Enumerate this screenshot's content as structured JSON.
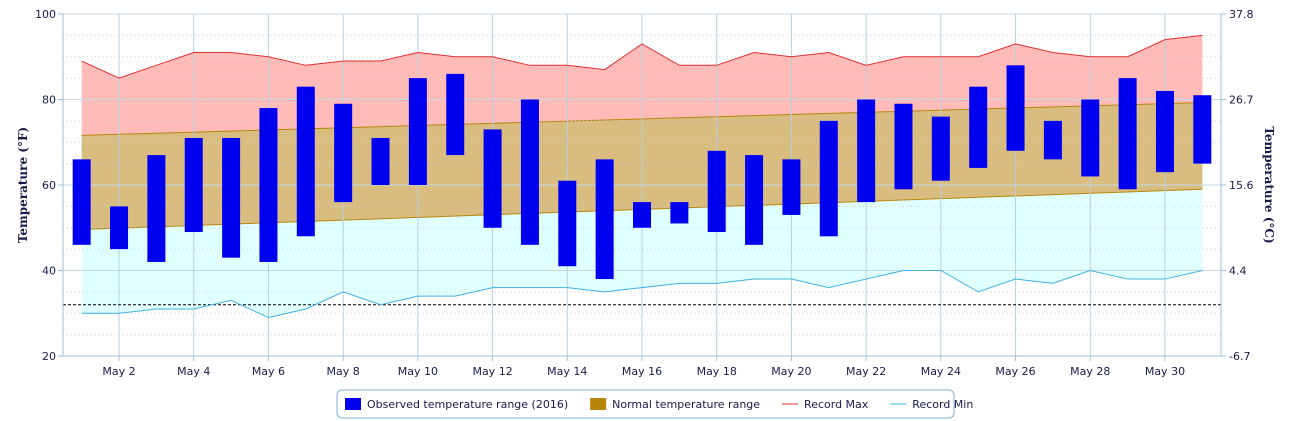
{
  "chart_data": {
    "type": "bar",
    "title": "",
    "x_tick_labels": [
      "May 2",
      "May 4",
      "May 6",
      "May 8",
      "May 10",
      "May 12",
      "May 14",
      "May 16",
      "May 18",
      "May 20",
      "May 22",
      "May 24",
      "May 26",
      "May 28",
      "May 30"
    ],
    "x_tick_days": [
      2,
      4,
      6,
      8,
      10,
      12,
      14,
      16,
      18,
      20,
      22,
      24,
      26,
      28,
      30
    ],
    "xlim": [
      0.5,
      31.5
    ],
    "y_left": {
      "label": "Temperature (°F)",
      "ylim": [
        20,
        100
      ],
      "ticks": [
        "20",
        "40",
        "60",
        "80",
        "100"
      ]
    },
    "y_right": {
      "label": "Temperature (°C)",
      "ylim": [
        -6.7,
        37.8
      ],
      "ticks": [
        "-6.7",
        "4.4",
        "15.6",
        "26.7",
        "37.8"
      ]
    },
    "reference_line": {
      "value": 32,
      "style": "dashed",
      "color": "#000000"
    },
    "grid": true,
    "legend_placement": "bottom-center",
    "series": [
      {
        "name": "Observed temperature range (2016)",
        "kind": "range-bar",
        "color": "#0000ee",
        "days": [
          1,
          2,
          3,
          4,
          5,
          6,
          7,
          8,
          9,
          10,
          11,
          12,
          13,
          14,
          15,
          16,
          17,
          18,
          19,
          20,
          21,
          22,
          23,
          24,
          25,
          26,
          27,
          28,
          29,
          30,
          31
        ],
        "low": [
          46,
          45,
          42,
          49,
          43,
          42,
          48,
          56,
          60,
          60,
          67,
          50,
          46,
          41,
          38,
          50,
          51,
          49,
          46,
          53,
          48,
          56,
          59,
          61,
          64,
          68,
          66,
          62,
          59,
          63,
          65
        ],
        "high": [
          66,
          55,
          67,
          71,
          71,
          78,
          83,
          79,
          71,
          85,
          86,
          73,
          80,
          61,
          66,
          56,
          56,
          68,
          67,
          66,
          75,
          80,
          79,
          76,
          83,
          88,
          75,
          80,
          85,
          82,
          81
        ]
      },
      {
        "name": "Normal temperature range",
        "kind": "area-range",
        "color": "#b8860b",
        "fill": "#d9bd80",
        "days": [
          1,
          31
        ],
        "low": [
          49.6,
          59.0
        ],
        "high": [
          71.6,
          79.3
        ]
      },
      {
        "name": "Record Max",
        "kind": "line",
        "color": "#e03030",
        "fill": "#ffbbb8",
        "days": [
          1,
          2,
          3,
          4,
          5,
          6,
          7,
          8,
          9,
          10,
          11,
          12,
          13,
          14,
          15,
          16,
          17,
          18,
          19,
          20,
          21,
          22,
          23,
          24,
          25,
          26,
          27,
          28,
          29,
          30,
          31
        ],
        "values": [
          89,
          85,
          88,
          91,
          91,
          90,
          88,
          89,
          89,
          91,
          90,
          90,
          88,
          88,
          87,
          93,
          88,
          88,
          91,
          90,
          91,
          88,
          90,
          90,
          90,
          93,
          91,
          90,
          90,
          94,
          95
        ]
      },
      {
        "name": "Record Min",
        "kind": "line",
        "color": "#40b0e0",
        "fill": "#e0ffff",
        "days": [
          1,
          2,
          3,
          4,
          5,
          6,
          7,
          8,
          9,
          10,
          11,
          12,
          13,
          14,
          15,
          16,
          17,
          18,
          19,
          20,
          21,
          22,
          23,
          24,
          25,
          26,
          27,
          28,
          29,
          30,
          31
        ],
        "values": [
          30,
          30,
          31,
          31,
          33,
          29,
          31,
          35,
          32,
          34,
          34,
          36,
          36,
          36,
          35,
          36,
          37,
          37,
          38,
          38,
          36,
          38,
          40,
          40,
          35,
          38,
          37,
          40,
          38,
          38,
          40
        ]
      }
    ]
  }
}
